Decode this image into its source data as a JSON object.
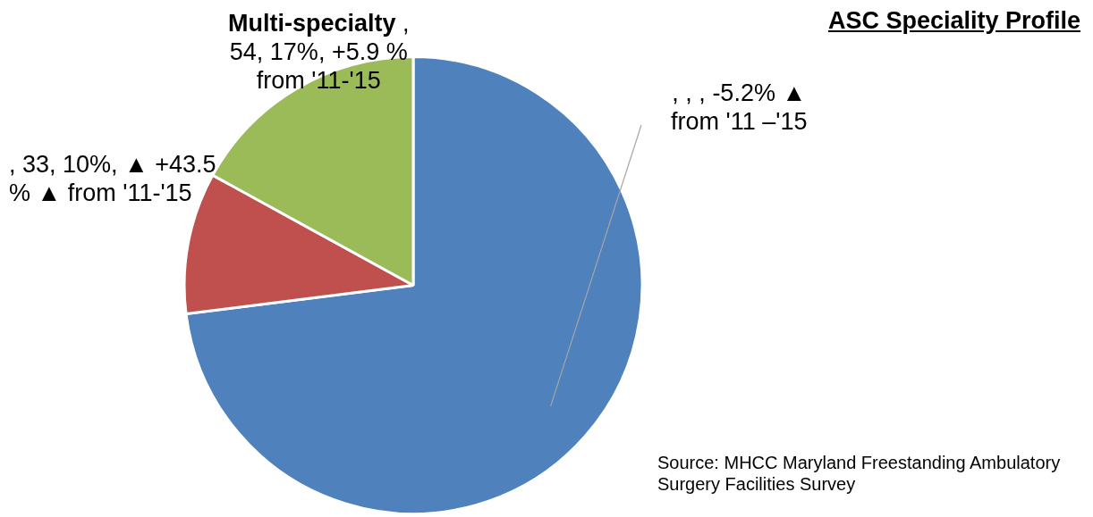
{
  "chart_data": {
    "type": "pie",
    "title": "ASC Speciality Profile",
    "categories": [
      null,
      null,
      "Multi-specialty"
    ],
    "values": [
      73,
      10,
      17
    ],
    "colors": [
      "#4f81bd",
      "#c0504d",
      "#9bbb59"
    ],
    "annotations": [
      ", , , -5.2% ▲ from '11 –'15",
      ", 33, 10%, ▲ +43.5 % ▲ from '11-'15",
      ", 54, 17%, +5.9 % from '11-'15",
      "Source: MHCC Maryland Freestanding Ambulatory Surgery Facilities Survey"
    ]
  }
}
